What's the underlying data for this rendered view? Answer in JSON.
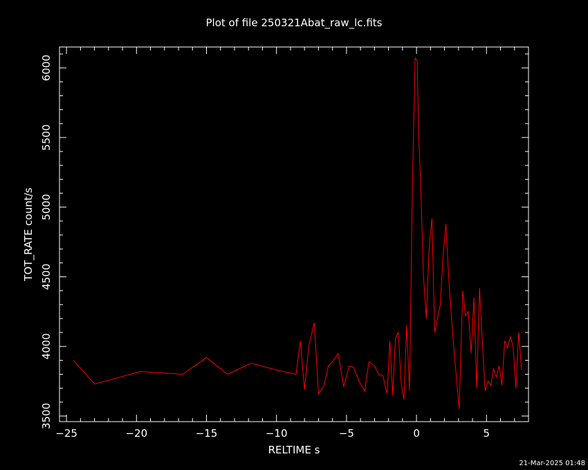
{
  "chart_data": {
    "type": "line",
    "title": "Plot of file 250321Abat_raw_lc.fits",
    "xlabel": "RELTIME  s",
    "ylabel": "TOT_RATE  count/s",
    "xlim": [
      -25.5,
      8.0
    ],
    "ylim": [
      3460,
      6150
    ],
    "x_ticks": [
      -25,
      -20,
      -15,
      -10,
      -5,
      0,
      5
    ],
    "x_tick_labels": [
      "−25",
      "−20",
      "−15",
      "−10",
      "−5",
      "0",
      "5"
    ],
    "y_ticks": [
      3500,
      4000,
      4500,
      5000,
      5500,
      6000
    ],
    "y_tick_labels": [
      "3500",
      "4000",
      "4500",
      "5000",
      "5500",
      "6000"
    ],
    "grid": false,
    "series": [
      {
        "color": "#ff0000",
        "x": [
          -24.5,
          -23.0,
          -19.7,
          -16.7,
          -15.0,
          -13.5,
          -11.8,
          -10.0,
          -8.6,
          -8.3,
          -8.0,
          -7.7,
          -7.3,
          -7.0,
          -6.6,
          -6.3,
          -6.0,
          -5.6,
          -5.2,
          -4.8,
          -4.5,
          -4.1,
          -3.7,
          -3.4,
          -3.0,
          -2.7,
          -2.4,
          -2.1,
          -1.9,
          -1.7,
          -1.5,
          -1.3,
          -1.1,
          -0.9,
          -0.7,
          -0.5,
          -0.3,
          -0.1,
          0.05,
          0.15,
          0.3,
          0.5,
          0.7,
          0.9,
          1.1,
          1.3,
          1.5,
          1.7,
          1.9,
          2.1,
          2.3,
          2.5,
          2.7,
          2.9,
          3.05,
          3.3,
          3.5,
          3.7,
          3.9,
          4.1,
          4.3,
          4.5,
          4.7,
          4.9,
          5.1,
          5.3,
          5.5,
          5.7,
          5.9,
          6.1,
          6.3,
          6.5,
          6.7,
          6.9,
          7.1,
          7.3,
          7.5
        ],
        "y": [
          3900,
          3730,
          3820,
          3800,
          3920,
          3800,
          3880,
          3830,
          3800,
          4040,
          3690,
          4000,
          4170,
          3660,
          3720,
          3860,
          3890,
          3950,
          3710,
          3860,
          3850,
          3750,
          3680,
          3890,
          3860,
          3800,
          3790,
          3660,
          4040,
          3650,
          4060,
          4100,
          3740,
          3620,
          4150,
          3680,
          5100,
          6070,
          6050,
          5550,
          5150,
          4500,
          4200,
          4700,
          4920,
          4100,
          4200,
          4300,
          4650,
          4880,
          4500,
          4200,
          3950,
          3720,
          3550,
          4400,
          4220,
          4250,
          3950,
          4350,
          3700,
          4420,
          4040,
          3680,
          3750,
          3720,
          3840,
          3780,
          3860,
          3720,
          4040,
          3990,
          4070,
          4000,
          3700,
          4100,
          3830
        ]
      }
    ]
  },
  "footer": {
    "timestamp": "21-Mar-2025 01:48"
  }
}
